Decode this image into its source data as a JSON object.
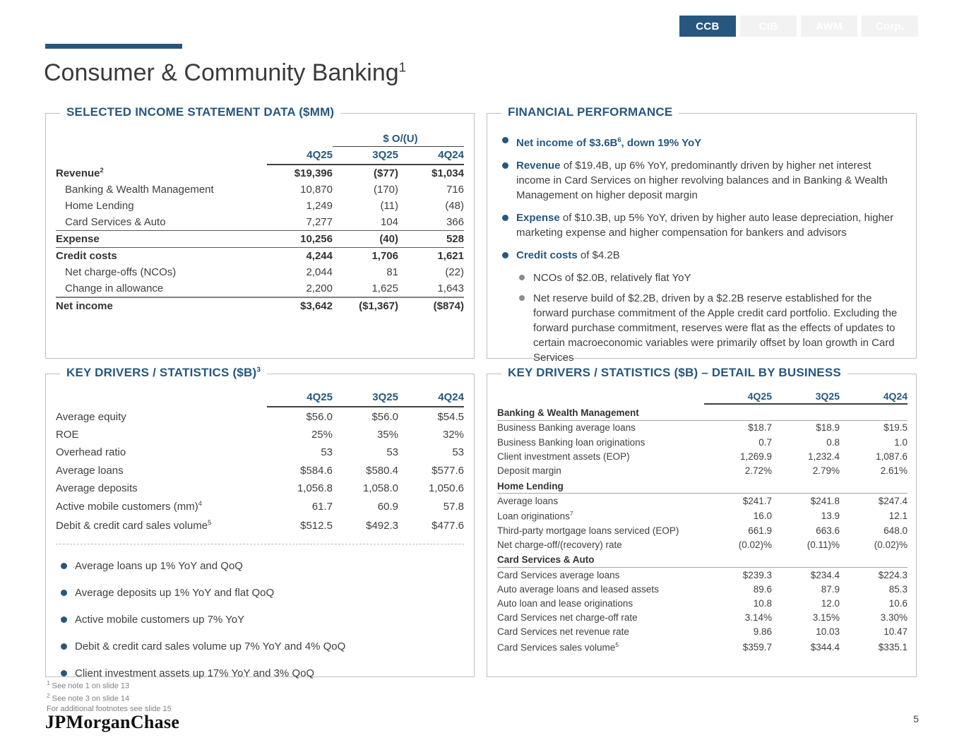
{
  "colors": {
    "accent_blue": "#27577f",
    "text_gray": "#404040",
    "inactive_tab_bg": "#f2f2f2",
    "panel_border": "#bfbfbf",
    "sub_bullet_gray": "#8c8c8c"
  },
  "tabs": [
    {
      "label": "CCB",
      "active": true
    },
    {
      "label": "CIB",
      "active": false
    },
    {
      "label": "AWM",
      "active": false
    },
    {
      "label": "Corp.",
      "active": false
    }
  ],
  "title": {
    "text": "Consumer & Community Banking",
    "sup": "1"
  },
  "income_statement": {
    "title": "SELECTED INCOME STATEMENT DATA ($MM)",
    "ou_header": "$ O/(U)",
    "columns": [
      "4Q25",
      "3Q25",
      "4Q24"
    ],
    "rows": [
      {
        "label": "Revenue",
        "sup": "2",
        "bold": true,
        "values": [
          "$19,396",
          "($77)",
          "$1,034"
        ]
      },
      {
        "label": "Banking & Wealth Management",
        "indent": true,
        "values": [
          "10,870",
          "(170)",
          "716"
        ]
      },
      {
        "label": "Home Lending",
        "indent": true,
        "values": [
          "1,249",
          "(11)",
          "(48)"
        ]
      },
      {
        "label": "Card Services & Auto",
        "indent": true,
        "values": [
          "7,277",
          "104",
          "366"
        ]
      },
      {
        "label": "Expense",
        "bold": true,
        "rule_top": true,
        "values": [
          "10,256",
          "(40)",
          "528"
        ]
      },
      {
        "label": "Credit costs",
        "bold": true,
        "rule_top": true,
        "values": [
          "4,244",
          "1,706",
          "1,621"
        ]
      },
      {
        "label": "Net charge-offs (NCOs)",
        "indent": true,
        "values": [
          "2,044",
          "81",
          "(22)"
        ]
      },
      {
        "label": "Change in allowance",
        "indent": true,
        "values": [
          "2,200",
          "1,625",
          "1,643"
        ]
      },
      {
        "label": "Net income",
        "bold": true,
        "rule_top_thick": true,
        "values": [
          "$3,642",
          "($1,367)",
          "($874)"
        ]
      }
    ]
  },
  "financial_performance": {
    "title": "FINANCIAL PERFORMANCE",
    "bullets": [
      {
        "level": 1,
        "segments": [
          {
            "text": "Net income of $3.6B",
            "blue": true
          },
          {
            "text": "6",
            "blue": true,
            "sup": true
          },
          {
            "text": ", down 19% YoY",
            "blue": true
          }
        ]
      },
      {
        "level": 1,
        "segments": [
          {
            "text": "Revenue",
            "blue": true
          },
          {
            "text": " of $19.4B, up 6% YoY, predominantly driven by higher net interest income in Card Services on higher revolving balances and in Banking & Wealth Management on higher deposit margin"
          }
        ]
      },
      {
        "level": 1,
        "segments": [
          {
            "text": "Expense",
            "blue": true
          },
          {
            "text": " of $10.3B, up 5% YoY, driven by higher auto lease depreciation, higher marketing expense and higher compensation for bankers and advisors"
          }
        ]
      },
      {
        "level": 1,
        "segments": [
          {
            "text": "Credit costs",
            "blue": true
          },
          {
            "text": " of $4.2B"
          }
        ]
      },
      {
        "level": 2,
        "segments": [
          {
            "text": "NCOs of $2.0B, relatively flat YoY"
          }
        ]
      },
      {
        "level": 2,
        "segments": [
          {
            "text": "Net reserve build of $2.2B, driven by a $2.2B reserve established for the forward purchase commitment of the Apple credit card portfolio. Excluding the forward purchase commitment, reserves were flat as the effects of updates to certain macroeconomic variables were primarily offset by loan growth in Card Services"
          }
        ]
      }
    ]
  },
  "key_drivers": {
    "title": "KEY DRIVERS / STATISTICS ($B)",
    "title_sup": "3",
    "columns": [
      "4Q25",
      "3Q25",
      "4Q24"
    ],
    "rows": [
      {
        "label": "Average equity",
        "values": [
          "$56.0",
          "$56.0",
          "$54.5"
        ]
      },
      {
        "label": "ROE",
        "values": [
          "25%",
          "35%",
          "32%"
        ]
      },
      {
        "label": "Overhead ratio",
        "values": [
          "53",
          "53",
          "53"
        ]
      },
      {
        "label": "Average loans",
        "values": [
          "$584.6",
          "$580.4",
          "$577.6"
        ]
      },
      {
        "label": "Average deposits",
        "values": [
          "1,056.8",
          "1,058.0",
          "1,050.6"
        ]
      },
      {
        "label": "Active mobile customers (mm)",
        "sup": "4",
        "values": [
          "61.7",
          "60.9",
          "57.8"
        ]
      },
      {
        "label": "Debit & credit card sales volume",
        "sup": "5",
        "values": [
          "$512.5",
          "$492.3",
          "$477.6"
        ]
      }
    ],
    "bullets": [
      "Average loans up 1% YoY and QoQ",
      "Average deposits up 1% YoY and flat QoQ",
      "Active mobile customers up 7% YoY",
      "Debit & credit card sales volume up 7% YoY and 4% QoQ",
      "Client investment assets up 17% YoY and 3% QoQ"
    ]
  },
  "detail_by_business": {
    "title": "KEY DRIVERS / STATISTICS ($B) – DETAIL BY BUSINESS",
    "columns": [
      "4Q25",
      "3Q25",
      "4Q24"
    ],
    "sections": [
      {
        "name": "Banking & Wealth Management",
        "rows": [
          {
            "label": "Business Banking average loans",
            "values": [
              "$18.7",
              "$18.9",
              "$19.5"
            ]
          },
          {
            "label": "Business Banking loan originations",
            "values": [
              "0.7",
              "0.8",
              "1.0"
            ]
          },
          {
            "label": "Client investment assets (EOP)",
            "values": [
              "1,269.9",
              "1,232.4",
              "1,087.6"
            ]
          },
          {
            "label": "Deposit margin",
            "values": [
              "2.72%",
              "2.79%",
              "2.61%"
            ]
          }
        ]
      },
      {
        "name": "Home Lending",
        "rows": [
          {
            "label": "Average loans",
            "values": [
              "$241.7",
              "$241.8",
              "$247.4"
            ]
          },
          {
            "label": "Loan originations",
            "sup": "7",
            "values": [
              "16.0",
              "13.9",
              "12.1"
            ]
          },
          {
            "label": "Third-party mortgage loans serviced (EOP)",
            "values": [
              "661.9",
              "663.6",
              "648.0"
            ]
          },
          {
            "label": "Net charge-off/(recovery) rate",
            "values": [
              "(0.02)%",
              "(0.11)%",
              "(0.02)%"
            ]
          }
        ]
      },
      {
        "name": "Card Services & Auto",
        "rows": [
          {
            "label": "Card Services average loans",
            "values": [
              "$239.3",
              "$234.4",
              "$224.3"
            ]
          },
          {
            "label": "Auto average loans and leased assets",
            "values": [
              "89.6",
              "87.9",
              "85.3"
            ]
          },
          {
            "label": "Auto loan and lease originations",
            "values": [
              "10.8",
              "12.0",
              "10.6"
            ]
          },
          {
            "label": "Card Services net charge-off rate",
            "values": [
              "3.14%",
              "3.15%",
              "3.30%"
            ]
          },
          {
            "label": "Card Services net revenue rate",
            "values": [
              "9.86",
              "10.03",
              "10.47"
            ]
          },
          {
            "label": "Card Services sales volume",
            "sup": "5",
            "values": [
              "$359.7",
              "$344.4",
              "$335.1"
            ]
          }
        ]
      }
    ]
  },
  "footer": {
    "footnotes": [
      {
        "sup": "1",
        "text": "See note 1 on slide 13"
      },
      {
        "sup": "2",
        "text": "See note 3 on slide 14"
      },
      {
        "sup": "",
        "text": "For additional footnotes see slide 15"
      }
    ],
    "logo": "JPMorganChase",
    "page_number": "5"
  }
}
